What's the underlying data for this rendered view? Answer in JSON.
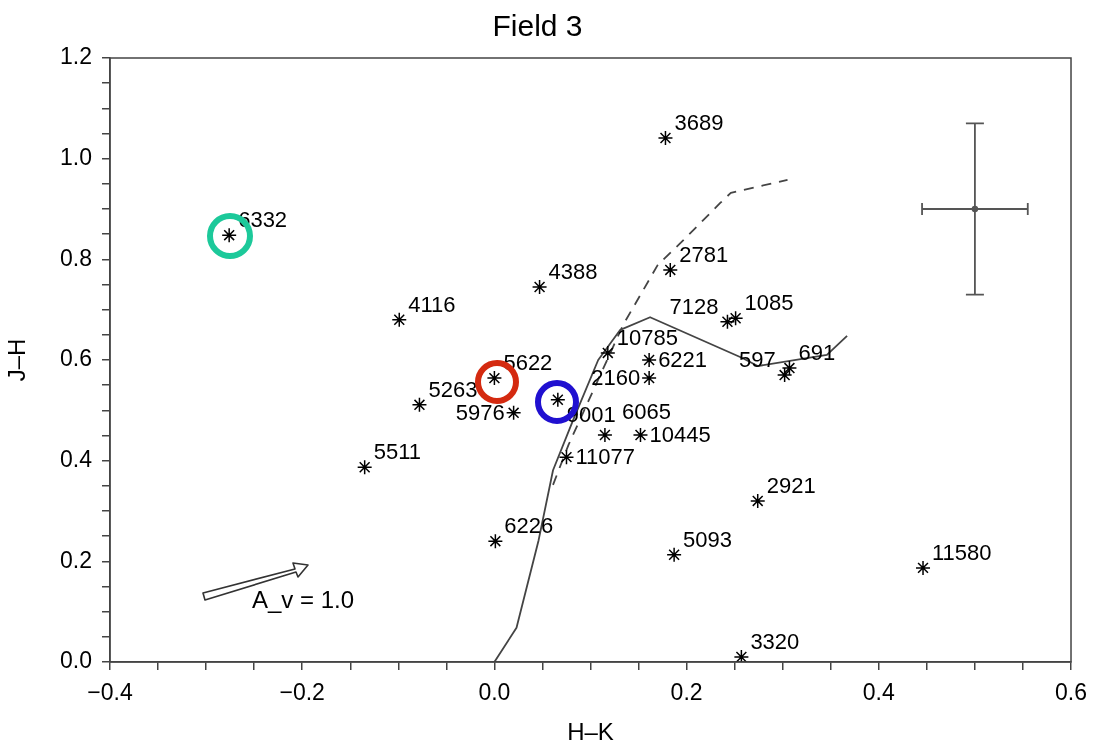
{
  "chart_data": {
    "type": "scatter",
    "title": "Field 3",
    "xlabel": "H–K",
    "ylabel": "J–H",
    "xlim": [
      -0.4,
      0.6
    ],
    "ylim": [
      0,
      1.2
    ],
    "xticks": [
      {
        "value": -0.4,
        "label": "−0.4"
      },
      {
        "value": -0.35,
        "label": null
      },
      {
        "value": -0.3,
        "label": null
      },
      {
        "value": -0.25,
        "label": null
      },
      {
        "value": -0.2,
        "label": "−0.2"
      },
      {
        "value": -0.15,
        "label": null
      },
      {
        "value": -0.1,
        "label": null
      },
      {
        "value": -0.05,
        "label": null
      },
      {
        "value": 0,
        "label": "0.0"
      },
      {
        "value": 0.05,
        "label": null
      },
      {
        "value": 0.1,
        "label": null
      },
      {
        "value": 0.15,
        "label": null
      },
      0.2,
      {
        "value": 0.25,
        "label": null
      },
      {
        "value": 0.3,
        "label": null
      },
      {
        "value": 0.35,
        "label": null
      },
      0.4,
      {
        "value": 0.45,
        "label": null
      },
      {
        "value": 0.5,
        "label": null
      },
      {
        "value": 0.55,
        "label": null
      },
      0.6
    ],
    "yticks": [
      {
        "value": 0,
        "label": "0.0"
      },
      {
        "value": 0.05,
        "label": null
      },
      {
        "value": 0.1,
        "label": null
      },
      {
        "value": 0.15,
        "label": null
      },
      0.2,
      {
        "value": 0.25,
        "label": null
      },
      {
        "value": 0.3,
        "label": null
      },
      {
        "value": 0.35,
        "label": null
      },
      0.4,
      {
        "value": 0.45,
        "label": null
      },
      {
        "value": 0.5,
        "label": null
      },
      {
        "value": 0.55,
        "label": null
      },
      0.6,
      {
        "value": 0.65,
        "label": null
      },
      {
        "value": 0.7,
        "label": null
      },
      {
        "value": 0.75,
        "label": null
      },
      0.8,
      {
        "value": 0.85,
        "label": null
      },
      {
        "value": 0.9,
        "label": null
      },
      {
        "value": 0.95,
        "label": null
      },
      {
        "value": 1,
        "label": "1.0"
      },
      {
        "value": 1.05,
        "label": null
      },
      {
        "value": 1.1,
        "label": null
      },
      {
        "value": 1.15,
        "label": null
      },
      1.2
    ],
    "grid": false,
    "legend": false,
    "series": [
      {
        "type": "scatter",
        "color": "#000000",
        "marker": "cross",
        "x": [
          0.178,
          -0.276,
          0.047,
          0.183,
          -0.099,
          0.2425,
          0.251,
          0.118,
          0.161,
          0.161,
          0.0,
          0.066,
          -0.078,
          0.02,
          -0.135,
          0.075,
          0.115,
          0.152,
          0.307,
          0.302,
          0.001,
          0.187,
          0.274,
          0.446,
          0.257
        ],
        "values": [
          1.041,
          0.848,
          0.745,
          0.779,
          0.68,
          0.676,
          0.683,
          0.614,
          0.6,
          0.564,
          0.564,
          0.521,
          0.511,
          0.495,
          0.387,
          0.407,
          0.451,
          0.451,
          0.584,
          0.57,
          0.24,
          0.213,
          0.32,
          0.187,
          0.01
        ]
      },
      {
        "type": "line",
        "color": "#444444",
        "marker": "none",
        "line_style": "solid",
        "x": [
          0,
          0.023,
          0.046,
          0.061,
          0.082,
          0.108,
          0.131,
          0.162,
          0.258,
          0.274,
          0.346,
          0.367
        ],
        "values": [
          0,
          0.068,
          0.242,
          0.381,
          0.481,
          0.6,
          0.66,
          0.685,
          0.604,
          0.588,
          0.61,
          0.648
        ]
      },
      {
        "type": "line",
        "color": "#444444",
        "marker": "none",
        "line_style": "dashed",
        "x": [
          0.061,
          0.077,
          0.134,
          0.17,
          0.194,
          0.235,
          0.246,
          0.305
        ],
        "values": [
          0.352,
          0.431,
          0.67,
          0.789,
          0.833,
          0.912,
          0.932,
          0.958
        ]
      },
      {
        "type": "scatter",
        "color": "#555555",
        "marker": "circle",
        "x": [
          0.5
        ],
        "values": [
          0.9
        ],
        "errors": [
          0.17
        ],
        "xerrors": [
          0.055
        ]
      }
    ],
    "annotations": [
      {
        "text": "3689",
        "x": 0.178,
        "y": 1.041
      },
      {
        "text": "6332",
        "x": -0.276,
        "y": 0.848
      },
      {
        "text": "4388",
        "x": 0.047,
        "y": 0.745
      },
      {
        "text": "2781",
        "x": 0.183,
        "y": 0.779
      },
      {
        "text": "4116",
        "x": -0.099,
        "y": 0.68
      },
      {
        "text": "7128",
        "x": 0.2425,
        "y": 0.676
      },
      {
        "text": "1085",
        "x": 0.251,
        "y": 0.683
      },
      {
        "text": "10785",
        "x": 0.118,
        "y": 0.614
      },
      {
        "text": "6221",
        "x": 0.161,
        "y": 0.6
      },
      {
        "text": "2160",
        "x": 0.161,
        "y": 0.564
      },
      {
        "text": "5622",
        "x": 0.0,
        "y": 0.564
      },
      {
        "text": "9001",
        "x": 0.066,
        "y": 0.521
      },
      {
        "text": "5263",
        "x": -0.078,
        "y": 0.511
      },
      {
        "text": "5976",
        "x": 0.02,
        "y": 0.495
      },
      {
        "text": "5511",
        "x": -0.135,
        "y": 0.387
      },
      {
        "text": "11077",
        "x": 0.075,
        "y": 0.407
      },
      {
        "text": "6065",
        "x": 0.115,
        "y": 0.451
      },
      {
        "text": "10445",
        "x": 0.152,
        "y": 0.451
      },
      {
        "text": "691",
        "x": 0.307,
        "y": 0.584
      },
      {
        "text": "597",
        "x": 0.302,
        "y": 0.57
      },
      {
        "text": "6226",
        "x": 0.001,
        "y": 0.24
      },
      {
        "text": "5093",
        "x": 0.187,
        "y": 0.213
      },
      {
        "text": "2921",
        "x": 0.274,
        "y": 0.32
      },
      {
        "text": "11580",
        "x": 0.446,
        "y": 0.187
      },
      {
        "text": "3320",
        "x": 0.257,
        "y": 0.01
      },
      "A_v = 1.0"
    ]
  }
}
